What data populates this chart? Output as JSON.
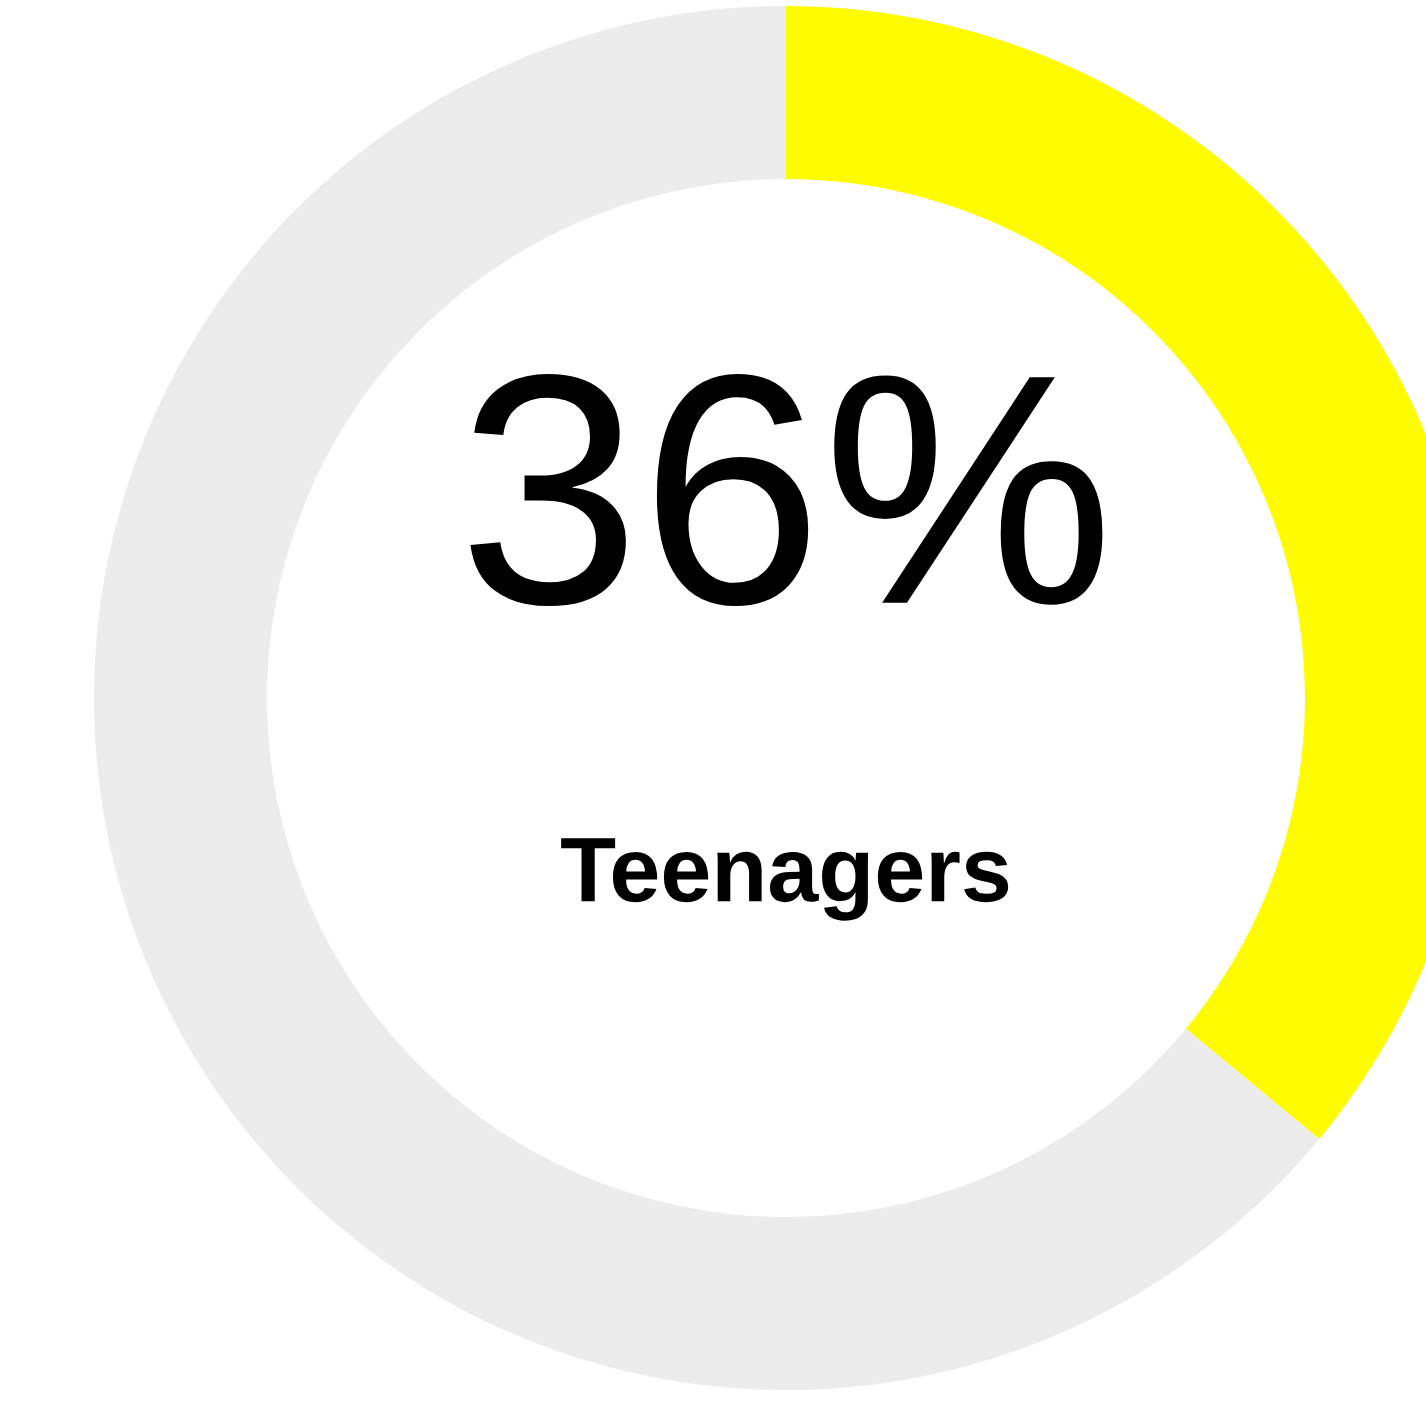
{
  "chart_data": {
    "type": "donut",
    "categories": [
      null,
      null
    ],
    "values": [
      36,
      64
    ],
    "colors": [
      "#fffc00",
      "#ececec"
    ],
    "annotations": [
      "36%",
      "Teenagers"
    ]
  }
}
